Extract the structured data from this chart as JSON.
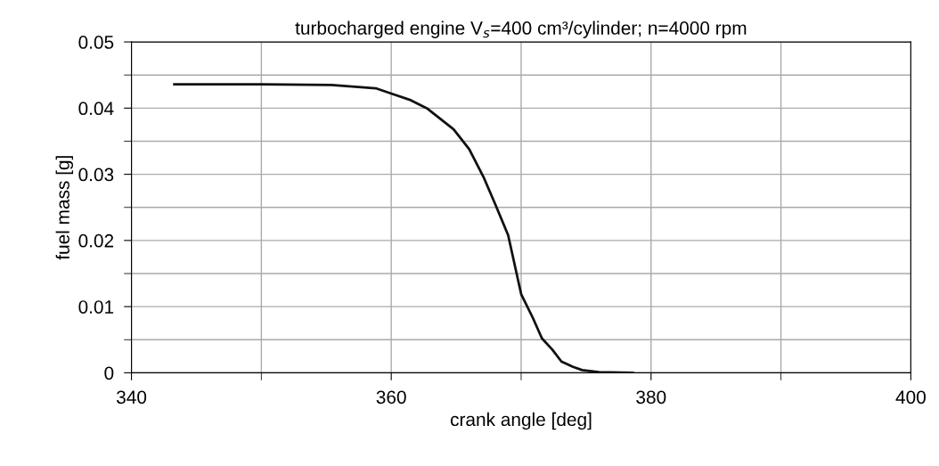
{
  "chart_data": {
    "type": "line",
    "title": "turbocharged engine V$_{s}$=400 cm³/cylinder; n=4000 rpm",
    "xlabel": "crank angle [deg]",
    "ylabel": "fuel mass [g]",
    "series": [
      {
        "color": "#111111",
        "x": [
          343.3,
          350,
          355.4,
          358.8,
          360,
          361.5,
          362.8,
          364.8,
          366,
          367.1,
          368,
          369,
          370,
          370.9,
          371.6,
          372.4,
          373.1,
          374,
          374.7,
          376,
          378.6
        ],
        "values": [
          0.0436,
          0.0436,
          0.0435,
          0.043,
          0.0422,
          0.0412,
          0.0399,
          0.0368,
          0.0338,
          0.0296,
          0.0255,
          0.0208,
          0.0119,
          0.0083,
          0.0052,
          0.0035,
          0.0017,
          0.0009,
          0.0004,
          0.0001,
          0.0
        ]
      }
    ],
    "xlim": [
      340,
      400
    ],
    "xticks": [
      340,
      360,
      380,
      400
    ],
    "ylim": [
      0,
      0.05
    ],
    "yticks": [
      0,
      0.01,
      0.02,
      0.03,
      0.04,
      0.05
    ],
    "grid": true,
    "marker": "none",
    "line_style": "solid"
  }
}
